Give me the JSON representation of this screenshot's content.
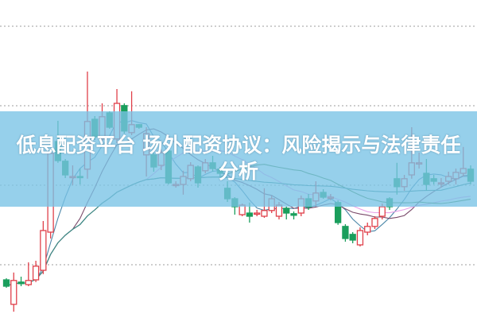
{
  "title": "低息配资平台 场外配资协议：风险揭示与法律责任分析",
  "colors": {
    "up": "#e0404a",
    "down": "#1a9e5c",
    "banner": "#8fcde9",
    "grid": "#b0b0b0",
    "ma": [
      "#4a86a8",
      "#7a4a6a",
      "#e8a0e8",
      "#4a8a4a",
      "#3a8a8a"
    ]
  },
  "chart_data": {
    "type": "candlestick",
    "ylim": [
      0,
      100
    ],
    "grid": true,
    "grid_style": "dotted horizontal",
    "axes_visible": false,
    "gridlines": [
      16.75,
      41.75,
      66.75,
      91.75
    ],
    "moving_average_periods": [
      5,
      10,
      20,
      30,
      60
    ],
    "ohlc": [
      [
        12,
        12.5,
        9.5,
        10
      ],
      [
        4.3,
        14.3,
        2,
        11.8
      ],
      [
        11.3,
        13,
        10,
        10.8
      ],
      [
        10.5,
        17.5,
        10,
        11.8
      ],
      [
        12,
        18,
        11.3,
        16.3
      ],
      [
        15,
        30.5,
        13.8,
        27.5
      ],
      [
        27,
        52.5,
        25,
        51.8
      ],
      [
        55.5,
        62,
        48.8,
        49.5
      ],
      [
        49.3,
        50,
        44,
        45
      ],
      [
        44.5,
        48,
        41.8,
        44.5
      ],
      [
        44.5,
        47,
        42,
        44.3
      ],
      [
        46.8,
        77.5,
        43.8,
        61.8
      ],
      [
        62.5,
        63.5,
        56,
        57
      ],
      [
        56.3,
        67.5,
        55.5,
        63.3
      ],
      [
        64.5,
        65,
        59.5,
        60
      ],
      [
        56.3,
        72,
        55,
        67.5
      ],
      [
        66.8,
        67.5,
        58,
        58.8
      ],
      [
        58.3,
        71.3,
        57.5,
        60.8
      ],
      [
        60.8,
        61,
        59.5,
        60
      ],
      [
        51.3,
        60,
        44.5,
        58
      ],
      [
        51.3,
        52,
        46,
        47.5
      ],
      [
        48,
        53,
        46.5,
        52
      ],
      [
        52.5,
        53,
        42,
        42.5
      ],
      [
        42,
        43,
        41,
        42
      ],
      [
        42,
        46.3,
        38.8,
        44.5
      ],
      [
        43.8,
        49,
        43,
        48
      ],
      [
        47.5,
        48,
        41,
        42.5
      ],
      [
        46.3,
        50,
        45.5,
        48.8
      ],
      [
        48.8,
        51,
        46,
        47
      ],
      [
        46.8,
        47.5,
        44.5,
        45.5
      ],
      [
        40.8,
        43,
        36.5,
        37.5
      ],
      [
        37.5,
        38,
        32.5,
        35
      ],
      [
        32.5,
        36,
        32,
        35.5
      ],
      [
        33,
        36.3,
        30,
        32
      ],
      [
        33,
        34,
        32,
        33
      ],
      [
        32,
        40.8,
        31.5,
        33.8
      ],
      [
        33.8,
        38.5,
        33,
        37.5
      ],
      [
        32,
        36.5,
        31,
        35.5
      ],
      [
        34.5,
        35,
        31,
        33
      ],
      [
        32.8,
        33.5,
        31,
        32.3
      ],
      [
        33,
        38.5,
        32,
        37.5
      ],
      [
        37.5,
        39,
        34,
        35
      ],
      [
        36.8,
        43,
        35,
        39.3
      ],
      [
        39.5,
        40.5,
        37.5,
        38
      ],
      [
        38,
        39,
        37,
        38
      ],
      [
        36.3,
        37,
        29.3,
        30
      ],
      [
        28.8,
        29.5,
        24,
        25
      ],
      [
        26.3,
        27,
        23.5,
        24.5
      ],
      [
        23,
        28.5,
        22.5,
        27.5
      ],
      [
        27,
        30,
        26,
        28.8
      ],
      [
        28.8,
        32,
        28,
        31.3
      ],
      [
        32,
        36,
        31,
        35
      ],
      [
        37.5,
        38,
        34,
        35
      ],
      [
        43.8,
        48.8,
        38.8,
        41.3
      ],
      [
        41.3,
        45,
        40,
        43.8
      ],
      [
        45,
        60,
        43.8,
        48.8
      ],
      [
        48.8,
        52,
        47,
        48.8
      ],
      [
        45.5,
        50,
        40,
        42
      ],
      [
        43.8,
        45,
        42,
        43
      ],
      [
        42.5,
        44,
        41,
        42.5
      ],
      [
        43,
        46,
        42,
        44.5
      ],
      [
        43.8,
        47,
        42,
        45.8
      ],
      [
        45.5,
        53.8,
        44.5,
        47
      ],
      [
        46.8,
        48,
        42,
        43
      ]
    ]
  }
}
